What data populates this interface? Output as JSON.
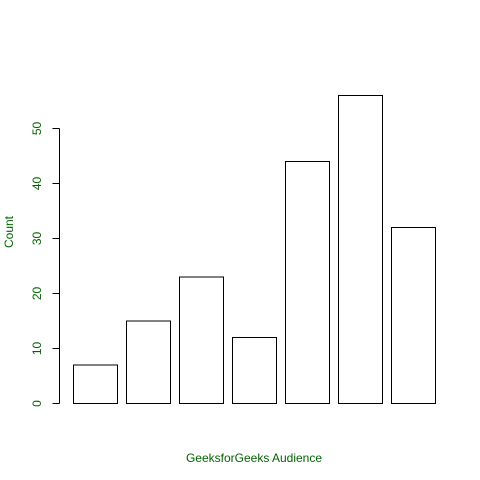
{
  "chart_data": {
    "type": "bar",
    "title": "",
    "xlabel": "GeeksforGeeks Audience",
    "ylabel": "Count",
    "categories": [
      "",
      "",
      "",
      "",
      "",
      "",
      ""
    ],
    "values": [
      7,
      15,
      23,
      12,
      44,
      56,
      32
    ],
    "ylim": [
      0,
      60
    ],
    "yticks": [
      0,
      10,
      20,
      30,
      40,
      50
    ],
    "grid": false,
    "legend": "none",
    "colors": {
      "bar_fill": "#ffffff",
      "bar_stroke": "#000000",
      "axis_text": "#006400"
    }
  }
}
